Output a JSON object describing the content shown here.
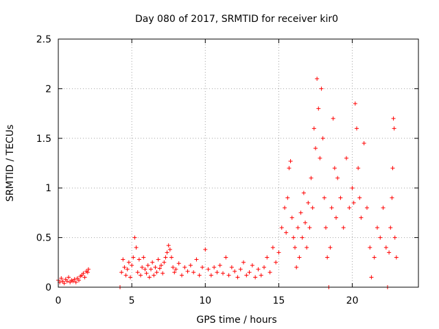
{
  "chart_data": {
    "type": "scatter",
    "title": "Day 080 of 2017, SRMTID for receiver kir0",
    "xlabel": "GPS time / hours",
    "ylabel": "SRMTID / TECUs",
    "xlim": [
      0,
      24.5
    ],
    "ylim": [
      0,
      2.5
    ],
    "xticks": [
      0,
      5,
      10,
      15,
      20
    ],
    "xtick_labels": [
      "0",
      "5",
      "10",
      "15",
      "20"
    ],
    "yticks": [
      0,
      0.5,
      1,
      1.5,
      2,
      2.5
    ],
    "ytick_labels": [
      "0",
      "0.5",
      "1",
      "1.5",
      "2",
      "2.5"
    ],
    "grid": true,
    "marker": "+",
    "series": [
      {
        "name": "kir0",
        "color": "#ff0000",
        "points": [
          [
            0.0,
            0.07
          ],
          [
            0.1,
            0.05
          ],
          [
            0.2,
            0.09
          ],
          [
            0.3,
            0.06
          ],
          [
            0.4,
            0.04
          ],
          [
            0.5,
            0.08
          ],
          [
            0.6,
            0.06
          ],
          [
            0.7,
            0.1
          ],
          [
            0.8,
            0.05
          ],
          [
            0.9,
            0.07
          ],
          [
            1.0,
            0.06
          ],
          [
            1.1,
            0.08
          ],
          [
            1.2,
            0.05
          ],
          [
            1.3,
            0.09
          ],
          [
            1.4,
            0.07
          ],
          [
            1.5,
            0.11
          ],
          [
            1.6,
            0.12
          ],
          [
            1.7,
            0.14
          ],
          [
            1.8,
            0.1
          ],
          [
            1.9,
            0.16
          ],
          [
            2.0,
            0.15
          ],
          [
            2.05,
            0.18
          ],
          [
            4.2,
            0.0
          ],
          [
            4.3,
            0.15
          ],
          [
            4.4,
            0.28
          ],
          [
            4.5,
            0.2
          ],
          [
            4.6,
            0.12
          ],
          [
            4.7,
            0.18
          ],
          [
            4.8,
            0.25
          ],
          [
            4.9,
            0.1
          ],
          [
            5.0,
            0.22
          ],
          [
            5.1,
            0.3
          ],
          [
            5.2,
            0.5
          ],
          [
            5.3,
            0.4
          ],
          [
            5.4,
            0.15
          ],
          [
            5.5,
            0.28
          ],
          [
            5.6,
            0.12
          ],
          [
            5.7,
            0.2
          ],
          [
            5.8,
            0.3
          ],
          [
            5.9,
            0.18
          ],
          [
            6.0,
            0.14
          ],
          [
            6.1,
            0.22
          ],
          [
            6.2,
            0.1
          ],
          [
            6.3,
            0.18
          ],
          [
            6.4,
            0.25
          ],
          [
            6.5,
            0.12
          ],
          [
            6.6,
            0.2
          ],
          [
            6.7,
            0.15
          ],
          [
            6.8,
            0.28
          ],
          [
            6.9,
            0.19
          ],
          [
            7.0,
            0.22
          ],
          [
            7.1,
            0.14
          ],
          [
            7.2,
            0.25
          ],
          [
            7.3,
            0.3
          ],
          [
            7.4,
            0.35
          ],
          [
            7.5,
            0.42
          ],
          [
            7.6,
            0.38
          ],
          [
            7.7,
            0.3
          ],
          [
            7.8,
            0.2
          ],
          [
            7.9,
            0.15
          ],
          [
            8.0,
            0.18
          ],
          [
            8.2,
            0.24
          ],
          [
            8.4,
            0.12
          ],
          [
            8.6,
            0.2
          ],
          [
            8.8,
            0.16
          ],
          [
            9.0,
            0.22
          ],
          [
            9.2,
            0.15
          ],
          [
            9.4,
            0.28
          ],
          [
            9.6,
            0.12
          ],
          [
            9.8,
            0.2
          ],
          [
            10.0,
            0.38
          ],
          [
            10.2,
            0.18
          ],
          [
            10.4,
            0.12
          ],
          [
            10.6,
            0.2
          ],
          [
            10.8,
            0.15
          ],
          [
            11.0,
            0.22
          ],
          [
            11.2,
            0.14
          ],
          [
            11.4,
            0.3
          ],
          [
            11.6,
            0.12
          ],
          [
            11.8,
            0.2
          ],
          [
            12.0,
            0.16
          ],
          [
            12.2,
            0.1
          ],
          [
            12.4,
            0.18
          ],
          [
            12.6,
            0.25
          ],
          [
            12.8,
            0.12
          ],
          [
            13.0,
            0.15
          ],
          [
            13.2,
            0.22
          ],
          [
            13.4,
            0.1
          ],
          [
            13.6,
            0.18
          ],
          [
            13.8,
            0.12
          ],
          [
            14.0,
            0.2
          ],
          [
            14.2,
            0.3
          ],
          [
            14.4,
            0.15
          ],
          [
            14.6,
            0.4
          ],
          [
            14.8,
            0.25
          ],
          [
            15.0,
            0.35
          ],
          [
            15.2,
            0.6
          ],
          [
            15.4,
            0.8
          ],
          [
            15.5,
            0.55
          ],
          [
            15.6,
            0.9
          ],
          [
            15.7,
            1.2
          ],
          [
            15.8,
            1.27
          ],
          [
            15.9,
            0.7
          ],
          [
            16.0,
            0.5
          ],
          [
            16.1,
            0.4
          ],
          [
            16.2,
            0.2
          ],
          [
            16.3,
            0.6
          ],
          [
            16.4,
            0.3
          ],
          [
            16.5,
            0.75
          ],
          [
            16.6,
            0.5
          ],
          [
            16.7,
            0.95
          ],
          [
            16.8,
            0.65
          ],
          [
            16.9,
            0.4
          ],
          [
            17.0,
            0.85
          ],
          [
            17.1,
            0.6
          ],
          [
            17.2,
            1.1
          ],
          [
            17.3,
            0.8
          ],
          [
            17.4,
            1.6
          ],
          [
            17.5,
            1.4
          ],
          [
            17.6,
            2.1
          ],
          [
            17.7,
            1.8
          ],
          [
            17.8,
            1.3
          ],
          [
            17.9,
            2.0
          ],
          [
            18.0,
            1.5
          ],
          [
            18.1,
            0.9
          ],
          [
            18.2,
            0.6
          ],
          [
            18.3,
            0.3
          ],
          [
            18.4,
            0.0
          ],
          [
            18.5,
            0.4
          ],
          [
            18.6,
            0.8
          ],
          [
            18.7,
            1.7
          ],
          [
            18.8,
            1.2
          ],
          [
            18.9,
            0.7
          ],
          [
            19.0,
            1.1
          ],
          [
            19.2,
            0.9
          ],
          [
            19.4,
            0.6
          ],
          [
            19.6,
            1.3
          ],
          [
            19.8,
            0.8
          ],
          [
            20.0,
            1.0
          ],
          [
            20.1,
            0.85
          ],
          [
            20.2,
            1.85
          ],
          [
            20.3,
            1.6
          ],
          [
            20.4,
            1.2
          ],
          [
            20.5,
            0.9
          ],
          [
            20.6,
            0.7
          ],
          [
            20.8,
            1.45
          ],
          [
            21.0,
            0.8
          ],
          [
            21.2,
            0.4
          ],
          [
            21.3,
            0.1
          ],
          [
            21.5,
            0.3
          ],
          [
            21.7,
            0.6
          ],
          [
            21.9,
            0.5
          ],
          [
            22.1,
            0.8
          ],
          [
            22.3,
            0.4
          ],
          [
            22.4,
            0.0
          ],
          [
            22.5,
            0.35
          ],
          [
            22.6,
            0.6
          ],
          [
            22.7,
            0.9
          ],
          [
            22.75,
            1.2
          ],
          [
            22.8,
            1.7
          ],
          [
            22.85,
            1.6
          ],
          [
            22.9,
            0.5
          ],
          [
            23.0,
            0.3
          ]
        ]
      }
    ]
  }
}
